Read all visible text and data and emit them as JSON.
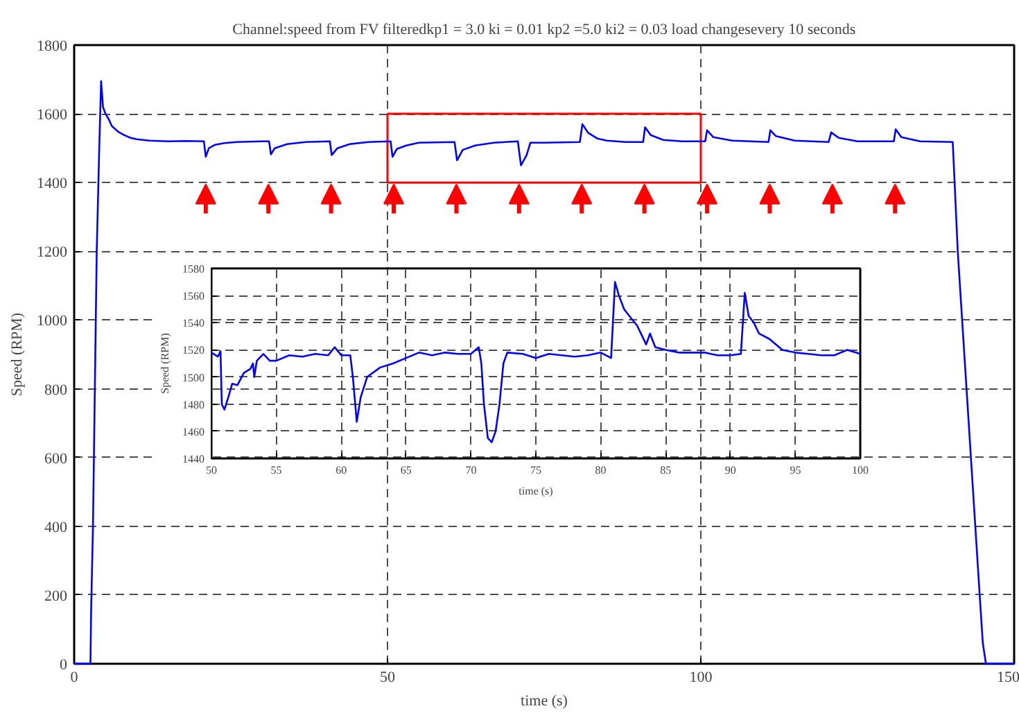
{
  "chart_data": [
    {
      "type": "line",
      "title": "Channel:speed from FV filteredkp1 = 3.0 ki = 0.01 kp2 =5.0 ki2 = 0.03 load changesevery 10 seconds",
      "xlabel": "time (s)",
      "ylabel": "Speed (RPM)",
      "x": [
        0,
        2.6,
        2.7,
        3.0,
        3.3,
        3.6,
        4.0,
        4.3,
        4.6,
        5.0,
        5.5,
        6,
        7,
        8,
        9,
        10,
        12,
        15,
        18,
        20.7,
        21.0,
        21.5,
        22.5,
        24,
        26,
        30,
        31.1,
        31.4,
        32,
        34,
        37,
        40.8,
        41.1,
        42,
        44,
        47,
        50.5,
        50.8,
        51.5,
        53,
        55,
        60.7,
        61.1,
        62,
        64,
        67,
        70.8,
        71.3,
        72.2,
        72.8,
        75,
        80.7,
        81.1,
        82,
        83.5,
        85,
        88,
        90.8,
        91.1,
        92,
        94,
        97,
        100.7,
        101,
        102,
        105,
        110.8,
        111.1,
        112,
        115,
        120.4,
        120.8,
        122,
        125,
        130.8,
        131.1,
        132,
        135,
        140.2,
        140.5,
        141,
        141.7,
        142.4,
        143.1,
        143.8,
        144.5,
        145,
        145.5,
        150
      ],
      "series": [
        {
          "color": "#0000ff",
          "values": [
            0,
            0,
            150,
            400,
            800,
            1200,
            1500,
            1695,
            1620,
            1600,
            1585,
            1565,
            1548,
            1538,
            1530,
            1526,
            1522,
            1520,
            1521,
            1520,
            1475,
            1500,
            1510,
            1515,
            1518,
            1520,
            1520,
            1482,
            1500,
            1512,
            1518,
            1520,
            1480,
            1500,
            1512,
            1518,
            1520,
            1475,
            1498,
            1508,
            1516,
            1518,
            1465,
            1495,
            1508,
            1516,
            1520,
            1450,
            1480,
            1516,
            1516,
            1518,
            1570,
            1545,
            1528,
            1522,
            1518,
            1518,
            1561,
            1538,
            1524,
            1520,
            1520,
            1552,
            1532,
            1522,
            1518,
            1552,
            1535,
            1522,
            1518,
            1546,
            1530,
            1520,
            1520,
            1555,
            1532,
            1520,
            1518,
            1400,
            1200,
            1000,
            800,
            600,
            400,
            200,
            60,
            0,
            0
          ]
        }
      ],
      "xlim": [
        0,
        150
      ],
      "ylim": [
        0,
        1800
      ],
      "xticks": [
        0,
        50,
        100,
        150
      ],
      "yticks": [
        0,
        200,
        400,
        600,
        800,
        1000,
        1200,
        1400,
        1600,
        1800
      ],
      "grid": true,
      "line_style": "solid"
    },
    {
      "type": "line",
      "xlabel": "time (s)",
      "ylabel": "Speed (RPM)",
      "x": [
        50,
        50.5,
        50.7,
        50.8,
        51,
        51.3,
        51.6,
        52,
        52.5,
        53,
        53.2,
        53.3,
        53.5,
        54,
        54.5,
        55,
        56,
        57,
        58,
        59,
        59.5,
        60,
        60.7,
        60.9,
        61.2,
        61.5,
        62,
        63,
        64,
        65,
        66,
        67,
        68,
        69,
        70,
        70.6,
        70.8,
        71,
        71.3,
        71.6,
        71.9,
        72.2,
        72.5,
        72.8,
        74,
        75,
        76,
        77,
        78,
        79,
        80,
        80.8,
        81.1,
        81.4,
        81.8,
        82.2,
        82.8,
        83.2,
        83.5,
        83.8,
        84.2,
        85,
        86,
        88,
        89,
        90,
        90.8,
        91.1,
        91.4,
        91.8,
        92.2,
        93,
        94,
        95,
        96,
        97,
        98,
        99,
        100
      ],
      "series": [
        {
          "color": "#0000ff",
          "values": [
            1518,
            1515,
            1519,
            1480,
            1476,
            1485,
            1495,
            1494,
            1503,
            1506,
            1510,
            1500,
            1512,
            1517,
            1512,
            1512,
            1516,
            1515,
            1517,
            1516,
            1522,
            1516,
            1516,
            1500,
            1467,
            1485,
            1500,
            1507,
            1510,
            1514,
            1518,
            1516,
            1518,
            1517,
            1517,
            1522,
            1510,
            1480,
            1455,
            1452,
            1460,
            1480,
            1510,
            1518,
            1517,
            1514,
            1517,
            1516,
            1515,
            1516,
            1518,
            1514,
            1570,
            1560,
            1550,
            1545,
            1538,
            1530,
            1524,
            1532,
            1522,
            1520,
            1518,
            1518,
            1516,
            1516,
            1517,
            1562,
            1545,
            1540,
            1532,
            1528,
            1520,
            1518,
            1517,
            1516,
            1516,
            1520,
            1517
          ]
        }
      ],
      "xlim": [
        50,
        100
      ],
      "ylim": [
        1440,
        1580
      ],
      "xticks": [
        50,
        55,
        60,
        65,
        70,
        75,
        80,
        85,
        90,
        95,
        100
      ],
      "yticks": [
        1440,
        1460,
        1480,
        1500,
        1520,
        1540,
        1560,
        1580
      ],
      "grid": true,
      "line_style": "solid"
    }
  ]
}
